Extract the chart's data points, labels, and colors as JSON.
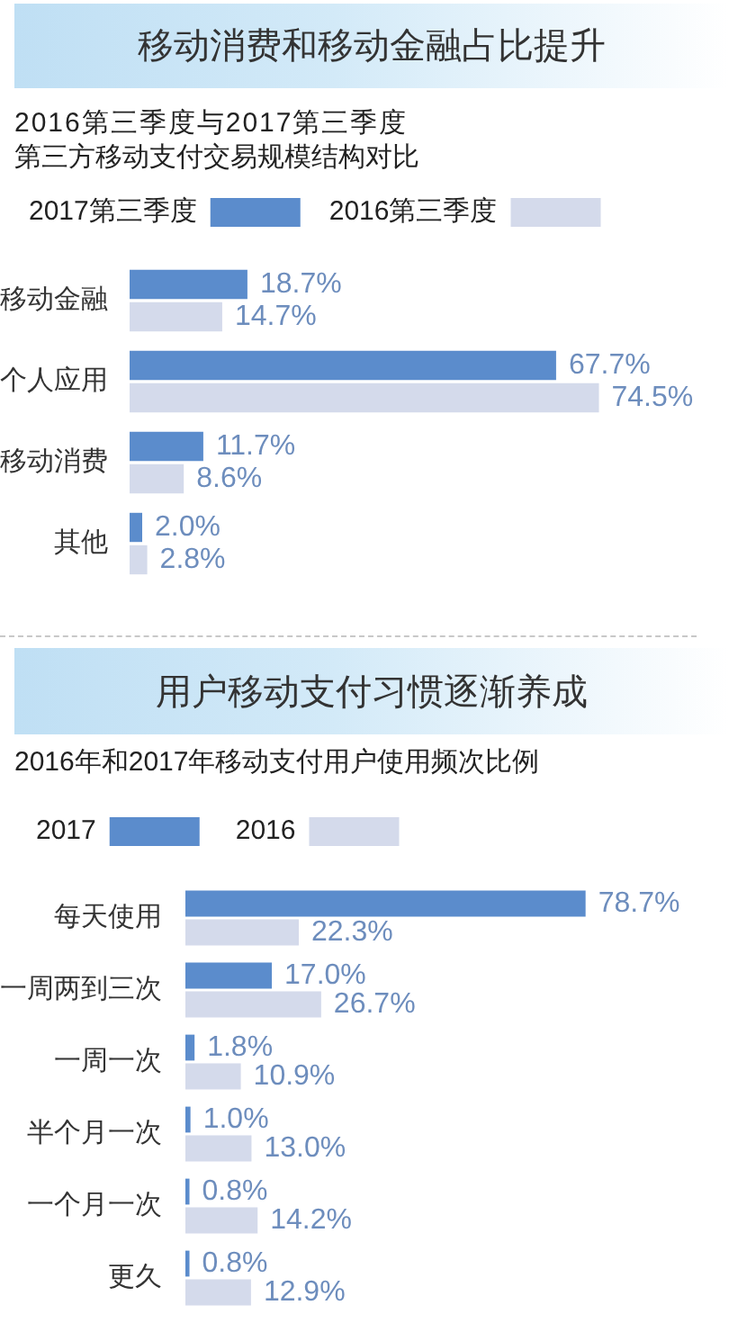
{
  "chart_data": [
    {
      "type": "bar",
      "orientation": "horizontal",
      "title": "移动消费和移动金融占比提升",
      "subtitle": "2016第三季度与2017第三季度第三方移动支付交易规模结构对比",
      "categories": [
        "移动金融",
        "个人应用",
        "移动消费",
        "其他"
      ],
      "series": [
        {
          "name": "2017第三季度",
          "color": "#5b8ccc",
          "values": [
            18.7,
            67.7,
            11.7,
            2.0
          ],
          "value_labels": [
            "18.7%",
            "67.7%",
            "11.7%",
            "2.0%"
          ]
        },
        {
          "name": "2016第三季度",
          "color": "#d4daeb",
          "values": [
            14.7,
            74.5,
            8.6,
            2.8
          ],
          "value_labels": [
            "14.7%",
            "74.5%",
            "8.6%",
            "2.8%"
          ]
        }
      ],
      "tick_labels": "y",
      "legend": "top left"
    },
    {
      "type": "bar",
      "orientation": "horizontal",
      "title": "用户移动支付习惯逐渐养成",
      "subtitle": "2016年和2017年移动支付用户使用频次比例",
      "categories": [
        "每天使用",
        "一周两到三次",
        "一周一次",
        "半个月一次",
        "一个月一次",
        "更久"
      ],
      "series": [
        {
          "name": "2017",
          "color": "#5b8ccc",
          "values": [
            78.7,
            17.0,
            1.8,
            1.0,
            0.8,
            0.8
          ],
          "value_labels": [
            "78.7%",
            "17.0%",
            "1.8%",
            "1.0%",
            "0.8%",
            "0.8%"
          ]
        },
        {
          "name": "2016",
          "color": "#d4daeb",
          "values": [
            22.3,
            26.7,
            10.9,
            13.0,
            14.2,
            12.9
          ],
          "value_labels": [
            "22.3%",
            "26.7%",
            "10.9%",
            "13.0%",
            "14.2%",
            "12.9%"
          ]
        }
      ],
      "tick_labels": "y",
      "legend": "top left"
    }
  ]
}
